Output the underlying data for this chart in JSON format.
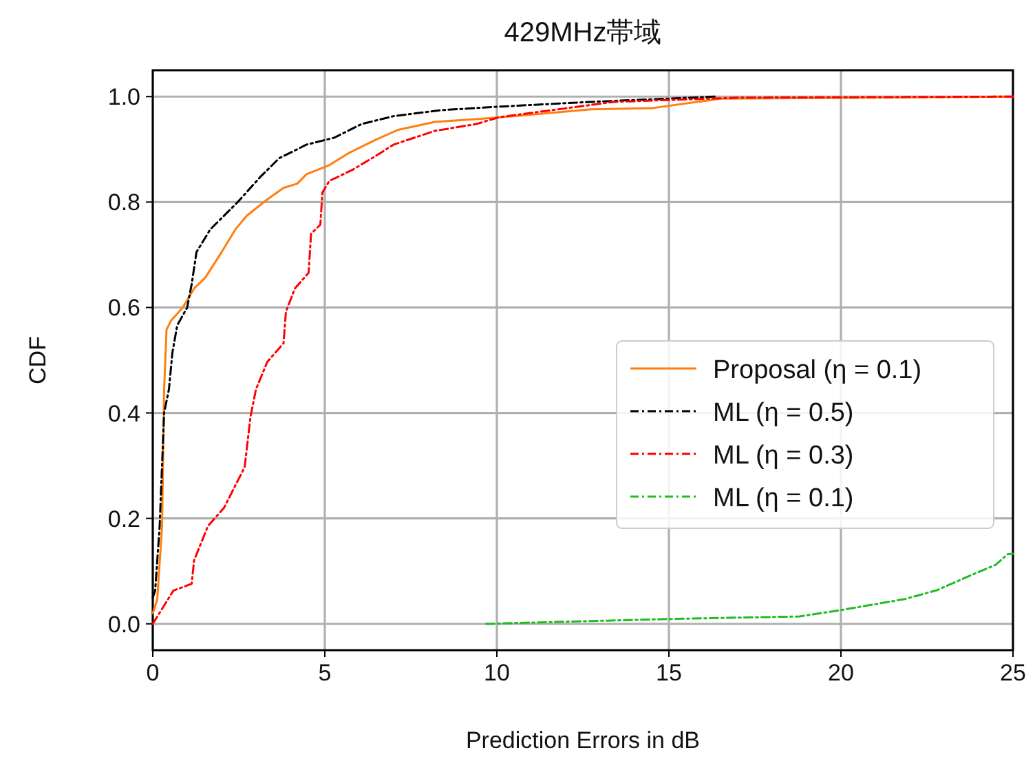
{
  "chart_data": {
    "type": "line",
    "title": "429MHz帯域",
    "xlabel": "Prediction Errors in dB",
    "ylabel": "CDF",
    "xlim": [
      0,
      25
    ],
    "ylim": [
      -0.05,
      1.05
    ],
    "xticks": [
      0,
      5,
      10,
      15,
      20,
      25
    ],
    "yticks": [
      {
        "value": 0,
        "label": "0.0"
      },
      {
        "value": 0.2,
        "label": "0.2"
      },
      {
        "value": 0.4,
        "label": "0.4"
      },
      {
        "value": 0.6,
        "label": "0.6"
      },
      {
        "value": 0.8,
        "label": "0.8"
      },
      {
        "value": 1,
        "label": "1.0"
      }
    ],
    "grid": true,
    "legend": "right",
    "series": [
      {
        "name": "Proposal (η = 0.1)",
        "color": "#ff7f0e",
        "line_style": "solid",
        "x": [
          0,
          0.13,
          0.27,
          0.33,
          0.4,
          0.53,
          0.87,
          1.2,
          1.53,
          2.0,
          2.4,
          2.73,
          3.33,
          3.8,
          4.2,
          4.47,
          5.13,
          5.67,
          6.47,
          7.13,
          8.2,
          9.53,
          10.87,
          12.73,
          14.5,
          16.5,
          25
        ],
        "values": [
          0.02,
          0.046,
          0.185,
          0.445,
          0.558,
          0.575,
          0.6,
          0.636,
          0.657,
          0.705,
          0.748,
          0.774,
          0.805,
          0.827,
          0.835,
          0.853,
          0.87,
          0.892,
          0.918,
          0.937,
          0.952,
          0.958,
          0.965,
          0.976,
          0.978,
          0.996,
          1.0
        ]
      },
      {
        "name": "ML (η = 0.5)",
        "color": "#000000",
        "line_style": "dashdot",
        "x": [
          0,
          0.07,
          0.2,
          0.33,
          0.47,
          0.57,
          0.71,
          1.0,
          1.13,
          1.27,
          1.67,
          2.47,
          3.13,
          3.67,
          4.47,
          5.27,
          6.07,
          7.0,
          8.33,
          10.07,
          12.73,
          16.36
        ],
        "values": [
          0.05,
          0.063,
          0.185,
          0.4,
          0.445,
          0.514,
          0.566,
          0.6,
          0.644,
          0.705,
          0.748,
          0.8,
          0.848,
          0.883,
          0.909,
          0.922,
          0.948,
          0.963,
          0.974,
          0.981,
          0.99,
          1.0
        ]
      },
      {
        "name": "ML (η = 0.3)",
        "color": "#ff0000",
        "line_style": "dashdot",
        "x": [
          0,
          0.6,
          1.13,
          1.2,
          1.6,
          2.07,
          2.67,
          2.84,
          3.0,
          3.33,
          3.8,
          3.87,
          4.13,
          4.53,
          4.6,
          4.87,
          4.93,
          5.13,
          5.8,
          6.47,
          7.0,
          8.2,
          9.4,
          10.07,
          13.4,
          17,
          25
        ],
        "values": [
          0,
          0.063,
          0.076,
          0.12,
          0.185,
          0.22,
          0.297,
          0.393,
          0.445,
          0.497,
          0.532,
          0.592,
          0.636,
          0.666,
          0.74,
          0.757,
          0.818,
          0.84,
          0.861,
          0.887,
          0.909,
          0.935,
          0.948,
          0.961,
          0.99,
          0.998,
          1.0
        ]
      },
      {
        "name": "ML (η = 0.1)",
        "color": "#22bb22",
        "line_style": "dashdot",
        "x": [
          9.69,
          14.93,
          18.8,
          20.0,
          21.86,
          22.8,
          23.7,
          24.5,
          24.84,
          25
        ],
        "values": [
          0,
          0.009,
          0.014,
          0.026,
          0.047,
          0.064,
          0.09,
          0.112,
          0.132,
          0.133
        ]
      }
    ]
  }
}
